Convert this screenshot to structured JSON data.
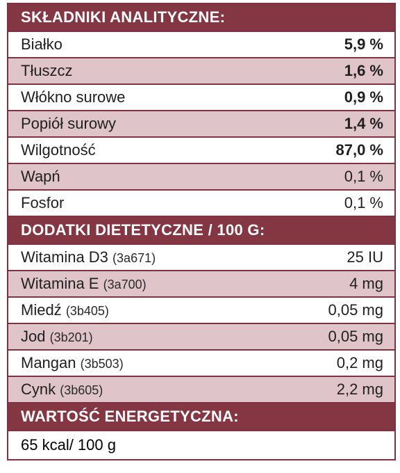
{
  "analytical": {
    "header": "SKŁADNIKI ANALITYCZNE:",
    "rows": [
      {
        "name": "Białko",
        "value": "5,9 %"
      },
      {
        "name": "Tłuszcz",
        "value": "1,6 %"
      },
      {
        "name": "Włókno surowe",
        "value": "0,9 %"
      },
      {
        "name": "Popiół surowy",
        "value": "1,4 %"
      },
      {
        "name": "Wilgotność",
        "value": "87,0 %"
      },
      {
        "name": "Wapń",
        "value": "0,1 %"
      },
      {
        "name": "Fosfor",
        "value": "0,1 %"
      }
    ]
  },
  "additives": {
    "header": "DODATKI DIETETYCZNE / 100 G:",
    "rows": [
      {
        "name": "Witamina D3",
        "code": "(3a671)",
        "value": "25 IU"
      },
      {
        "name": "Witamina E",
        "code": "(3a700)",
        "value": "4 mg"
      },
      {
        "name": "Miedź",
        "code": "(3b405)",
        "value": "0,05 mg"
      },
      {
        "name": "Jod",
        "code": "(3b201)",
        "value": "0,05 mg"
      },
      {
        "name": "Mangan",
        "code": "(3b503)",
        "value": "0,2 mg"
      },
      {
        "name": "Cynk",
        "code": "(3b605)",
        "value": "2,2 mg"
      }
    ]
  },
  "energy": {
    "header": "WARTOŚĆ ENERGETYCZNA:",
    "value": "65 kcal/ 100 g"
  },
  "colors": {
    "header_bg": "#843642",
    "alt_row_bg": "#dfc5c9",
    "border": "#7e3140"
  }
}
